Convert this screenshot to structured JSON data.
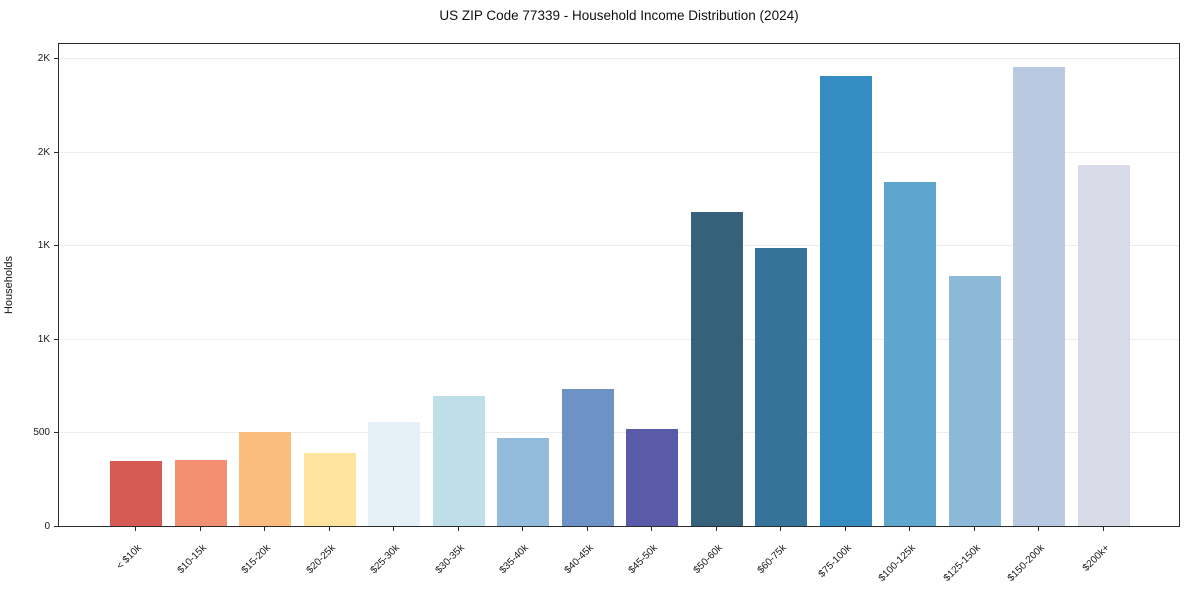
{
  "chart_data": {
    "type": "bar",
    "title": "US ZIP Code 77339 - Household Income Distribution (2024)",
    "xlabel": "",
    "ylabel": "Households",
    "categories": [
      "< $10k",
      "$10-15k",
      "$15-20k",
      "$20-25k",
      "$25-30k",
      "$30-35k",
      "$35-40k",
      "$40-45k",
      "$45-50k",
      "$50-60k",
      "$60-75k",
      "$75-100k",
      "$100-125k",
      "$125-150k",
      "$150-200k",
      "$200k+"
    ],
    "values": [
      350,
      355,
      500,
      390,
      555,
      695,
      470,
      730,
      520,
      1680,
      1485,
      2405,
      1840,
      1335,
      2450,
      1930
    ],
    "bar_colors": [
      "#D75B55",
      "#F39072",
      "#FBBD7D",
      "#FEE49E",
      "#E4F1F6",
      "#BEDFE9",
      "#92BBDC",
      "#6D92C5",
      "#5A5BA8",
      "#35617A",
      "#35739B",
      "#348CC3",
      "#5FA6CE",
      "#8DB9D9",
      "#B9C9E2",
      "#D8DBE7"
    ],
    "y_ticks": [
      {
        "value": 0,
        "label": "0"
      },
      {
        "value": 500,
        "label": "500"
      },
      {
        "value": 1000,
        "label": "1K"
      },
      {
        "value": 1500,
        "label": "1K"
      },
      {
        "value": 2000,
        "label": "2K"
      },
      {
        "value": 2500,
        "label": "2K"
      }
    ],
    "ylim": [
      0,
      2586
    ],
    "grid": "horizontal",
    "legend": "none",
    "x_tick_rotation_deg": 45
  },
  "colors": {
    "background": "#ffffff",
    "grid": "#ececec",
    "spine": "#2b2b2b",
    "text": "#1a1a1a"
  }
}
